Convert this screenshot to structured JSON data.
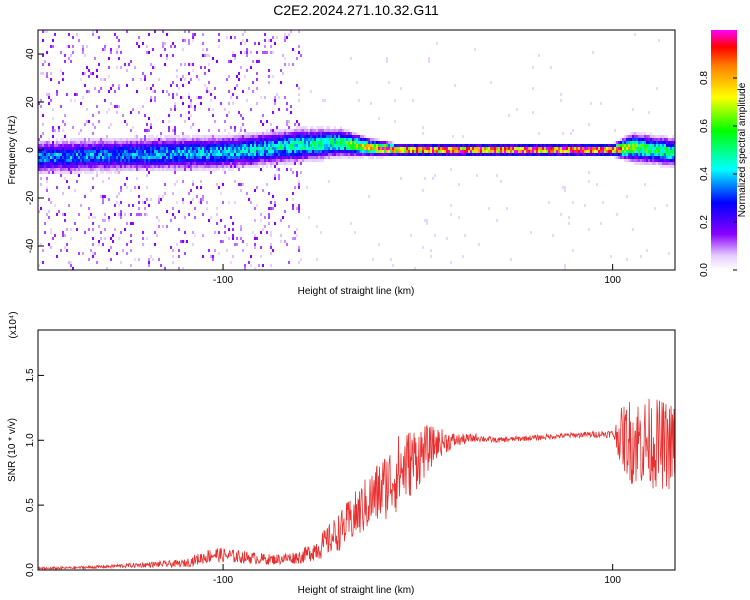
{
  "figure": {
    "title": "C2E2.2024.271.10.32.G11"
  },
  "chart_data": [
    {
      "type": "heatmap",
      "xlabel": "Height of straight line (km)",
      "ylabel": "Frequency (Hz)",
      "xlim": [
        -195,
        132
      ],
      "ylim": [
        -50,
        50
      ],
      "xticks": [
        -100,
        100
      ],
      "yticks": [
        -40,
        -20,
        0,
        20,
        40
      ],
      "grid": false,
      "colorbar": {
        "label": "Normalized spectral amplitude",
        "range": [
          0,
          1
        ],
        "ticks": [
          0.0,
          0.2,
          0.4,
          0.6,
          0.8
        ],
        "tick_labels": [
          "0.0",
          "0.2",
          "0.4",
          "0.6",
          "0.8"
        ],
        "colormap": "rainbow (white–violet–blue–cyan–green–yellow–orange–red–magenta)"
      },
      "ridge": {
        "description": "main spectral line near 0 Hz",
        "height_km": [
          -195,
          -150,
          -100,
          -60,
          -40,
          -25,
          -10,
          0,
          50,
          100,
          110,
          132
        ],
        "center_hz": [
          -3,
          -2,
          -1,
          2,
          3,
          1,
          0,
          0,
          0,
          0,
          1,
          -1
        ],
        "half_width_hz": [
          6,
          6,
          6,
          6,
          5,
          3,
          2,
          2,
          2,
          2,
          5,
          5
        ],
        "peak_amplitude": [
          0.35,
          0.35,
          0.4,
          0.45,
          0.5,
          0.8,
          0.9,
          0.95,
          0.98,
          0.98,
          0.6,
          0.5
        ]
      },
      "noise": {
        "description": "scattered low-amplitude noise at low heights",
        "region_km": [
          -195,
          -60
        ]
      }
    },
    {
      "type": "line",
      "xlabel": "Height of straight line (km)",
      "ylabel": "SNR (10 * v/v)",
      "y_scale_label": "(x10⁴)",
      "xlim": [
        -195,
        132
      ],
      "ylim": [
        0,
        1.85
      ],
      "xticks": [
        -100,
        100
      ],
      "yticks": [
        0.0,
        0.5,
        1.0,
        1.5
      ],
      "ytick_labels": [
        "0.0",
        "0.5",
        "1.0",
        "1.5"
      ],
      "grid": false,
      "color": "#e83030",
      "series": [
        {
          "name": "",
          "x": [
            -195,
            -170,
            -140,
            -120,
            -105,
            -90,
            -75,
            -60,
            -50,
            -40,
            -30,
            -20,
            -10,
            0,
            10,
            20,
            30,
            40,
            60,
            80,
            100,
            105,
            110,
            120,
            132
          ],
          "y": [
            0.01,
            0.02,
            0.04,
            0.05,
            0.12,
            0.1,
            0.08,
            0.1,
            0.18,
            0.3,
            0.45,
            0.6,
            0.75,
            0.88,
            0.98,
            1.0,
            1.02,
            1.0,
            1.02,
            1.04,
            1.05,
            1.02,
            1.0,
            0.98,
            0.95
          ],
          "noise_amplitude": [
            0.01,
            0.01,
            0.02,
            0.03,
            0.06,
            0.05,
            0.04,
            0.05,
            0.1,
            0.15,
            0.2,
            0.25,
            0.3,
            0.25,
            0.12,
            0.05,
            0.03,
            0.02,
            0.02,
            0.02,
            0.03,
            0.25,
            0.35,
            0.35,
            0.35
          ]
        }
      ]
    }
  ]
}
